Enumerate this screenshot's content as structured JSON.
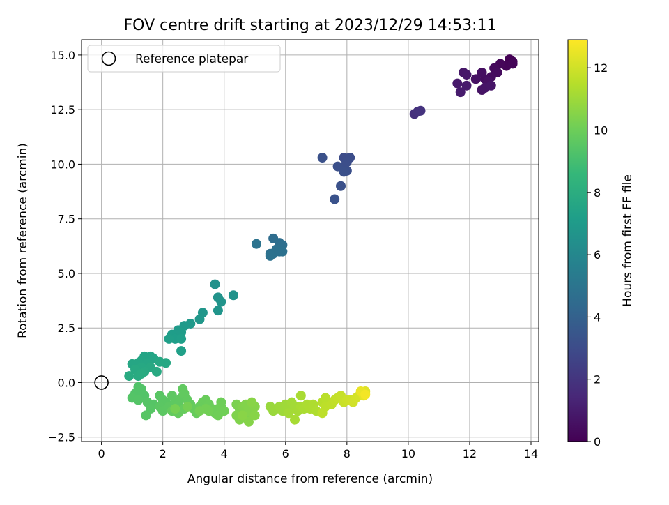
{
  "chart_data": {
    "type": "scatter",
    "title": "FOV centre drift starting at 2023/12/29 14:53:11",
    "xlabel": "Angular distance from reference (arcmin)",
    "ylabel": "Rotation from reference (arcmin)",
    "xlim": [
      -0.65,
      14.25
    ],
    "ylim": [
      -2.7,
      15.7
    ],
    "xticks": [
      0,
      2,
      4,
      6,
      8,
      10,
      12,
      14
    ],
    "yticks": [
      -2.5,
      0.0,
      2.5,
      5.0,
      7.5,
      10.0,
      12.5,
      15.0
    ],
    "ytick_labels": [
      "−2.5",
      "0.0",
      "2.5",
      "5.0",
      "7.5",
      "10.0",
      "12.5",
      "15.0"
    ],
    "grid": true,
    "legend": {
      "placement": "top-left",
      "entries": [
        "Reference platepar"
      ]
    },
    "reference_point": {
      "x": 0,
      "y": 0
    },
    "colorbar": {
      "label": "Hours from first FF file",
      "range": [
        0,
        12.9
      ],
      "ticks": [
        0,
        2,
        4,
        6,
        8,
        10,
        12
      ],
      "colormap": "viridis"
    },
    "colormap_stops": [
      "#440154",
      "#482878",
      "#3e4989",
      "#31688e",
      "#26828e",
      "#1f9e89",
      "#35b779",
      "#6ece58",
      "#b5de2b",
      "#fde725"
    ],
    "series": [
      {
        "columns": [
          "x",
          "y",
          "hours"
        ],
        "points": [
          [
            13.3,
            14.8,
            0.0
          ],
          [
            13.4,
            14.7,
            0.05
          ],
          [
            13.2,
            14.5,
            0.1
          ],
          [
            13.4,
            14.6,
            0.15
          ],
          [
            13.0,
            14.6,
            0.2
          ],
          [
            12.8,
            14.4,
            0.3
          ],
          [
            12.9,
            14.2,
            0.35
          ],
          [
            12.7,
            14.0,
            0.4
          ],
          [
            12.5,
            13.9,
            0.45
          ],
          [
            12.4,
            14.2,
            0.5
          ],
          [
            12.6,
            13.8,
            0.55
          ],
          [
            12.2,
            13.9,
            0.6
          ],
          [
            12.4,
            13.4,
            0.65
          ],
          [
            12.5,
            13.5,
            0.7
          ],
          [
            12.7,
            13.6,
            0.75
          ],
          [
            11.8,
            14.2,
            0.8
          ],
          [
            11.9,
            14.1,
            0.85
          ],
          [
            11.6,
            13.7,
            0.9
          ],
          [
            11.9,
            13.6,
            0.95
          ],
          [
            11.7,
            13.3,
            1.0
          ],
          [
            10.2,
            12.3,
            1.8
          ],
          [
            10.3,
            12.4,
            1.85
          ],
          [
            10.4,
            12.45,
            1.9
          ],
          [
            7.9,
            10.3,
            3.0
          ],
          [
            8.1,
            10.3,
            3.05
          ],
          [
            8.0,
            10.1,
            3.1
          ],
          [
            7.9,
            9.9,
            3.12
          ],
          [
            8.0,
            9.7,
            3.15
          ],
          [
            7.9,
            9.65,
            3.18
          ],
          [
            7.7,
            9.9,
            3.2
          ],
          [
            7.2,
            10.3,
            3.22
          ],
          [
            7.8,
            9.0,
            3.25
          ],
          [
            7.6,
            8.4,
            3.3
          ],
          [
            5.6,
            6.6,
            4.6
          ],
          [
            5.8,
            6.4,
            4.65
          ],
          [
            5.9,
            6.3,
            4.7
          ],
          [
            5.7,
            6.1,
            4.72
          ],
          [
            5.5,
            5.9,
            4.75
          ],
          [
            5.6,
            5.9,
            4.78
          ],
          [
            5.8,
            6.0,
            4.8
          ],
          [
            5.9,
            6.0,
            4.82
          ],
          [
            5.5,
            5.8,
            4.85
          ],
          [
            5.05,
            6.35,
            4.9
          ],
          [
            3.7,
            4.5,
            6.5
          ],
          [
            4.3,
            4.0,
            6.55
          ],
          [
            3.8,
            3.9,
            6.6
          ],
          [
            3.9,
            3.7,
            6.65
          ],
          [
            3.8,
            3.3,
            6.7
          ],
          [
            3.3,
            3.2,
            6.75
          ],
          [
            3.2,
            2.9,
            6.8
          ],
          [
            2.9,
            2.7,
            6.9
          ],
          [
            2.7,
            2.6,
            6.95
          ],
          [
            2.5,
            2.4,
            7.0
          ],
          [
            2.6,
            2.3,
            7.05
          ],
          [
            2.3,
            2.2,
            7.1
          ],
          [
            2.4,
            2.0,
            7.15
          ],
          [
            2.6,
            2.0,
            7.2
          ],
          [
            2.2,
            2.0,
            7.25
          ],
          [
            2.6,
            1.45,
            7.3
          ],
          [
            1.6,
            1.2,
            7.5
          ],
          [
            1.4,
            1.2,
            7.52
          ],
          [
            1.7,
            1.1,
            7.55
          ],
          [
            1.3,
            1.0,
            7.58
          ],
          [
            1.5,
            0.9,
            7.6
          ],
          [
            1.2,
            0.9,
            7.62
          ],
          [
            1.0,
            0.85,
            7.65
          ],
          [
            2.1,
            0.9,
            7.68
          ],
          [
            1.9,
            0.95,
            7.7
          ],
          [
            1.3,
            0.7,
            7.72
          ],
          [
            1.6,
            0.7,
            7.75
          ],
          [
            1.1,
            0.6,
            7.78
          ],
          [
            1.4,
            0.5,
            7.8
          ],
          [
            1.8,
            0.5,
            7.82
          ],
          [
            0.9,
            0.3,
            7.85
          ],
          [
            1.2,
            0.3,
            7.88
          ],
          [
            1.3,
            0.4,
            7.9
          ],
          [
            1.2,
            -0.2,
            9.3
          ],
          [
            1.3,
            -0.3,
            9.32
          ],
          [
            1.1,
            -0.5,
            9.34
          ],
          [
            1.4,
            -0.6,
            9.36
          ],
          [
            1.0,
            -0.7,
            9.38
          ],
          [
            1.2,
            -0.8,
            9.4
          ],
          [
            1.5,
            -0.9,
            9.42
          ],
          [
            1.7,
            -1.0,
            9.44
          ],
          [
            1.6,
            -1.2,
            9.46
          ],
          [
            1.45,
            -1.5,
            9.48
          ],
          [
            1.9,
            -0.6,
            9.5
          ],
          [
            2.0,
            -0.8,
            9.52
          ],
          [
            2.1,
            -0.9,
            9.54
          ],
          [
            1.9,
            -1.1,
            9.56
          ],
          [
            2.0,
            -1.3,
            9.58
          ],
          [
            2.2,
            -1.1,
            9.6
          ],
          [
            2.3,
            -0.6,
            9.62
          ],
          [
            2.4,
            -0.9,
            9.64
          ],
          [
            2.5,
            -1.0,
            9.66
          ],
          [
            2.6,
            -0.7,
            9.68
          ],
          [
            2.65,
            -0.3,
            9.7
          ],
          [
            2.7,
            -0.5,
            9.72
          ],
          [
            2.8,
            -0.8,
            9.74
          ],
          [
            2.9,
            -1.0,
            9.76
          ],
          [
            2.3,
            -1.3,
            9.78
          ],
          [
            2.5,
            -1.4,
            9.8
          ],
          [
            2.7,
            -1.2,
            9.82
          ],
          [
            3.0,
            -1.2,
            9.84
          ],
          [
            3.1,
            -1.4,
            9.86
          ],
          [
            3.2,
            -1.1,
            9.88
          ],
          [
            3.3,
            -0.9,
            9.9
          ],
          [
            3.4,
            -0.8,
            9.92
          ],
          [
            3.5,
            -1.0,
            9.94
          ],
          [
            3.6,
            -1.2,
            9.96
          ],
          [
            3.7,
            -1.4,
            9.98
          ],
          [
            3.8,
            -1.2,
            10.0
          ],
          [
            3.9,
            -0.9,
            10.02
          ],
          [
            3.9,
            -1.1,
            10.04
          ],
          [
            3.8,
            -1.5,
            10.06
          ],
          [
            4.0,
            -1.3,
            10.08
          ],
          [
            3.5,
            -1.3,
            10.1
          ],
          [
            3.4,
            -1.2,
            10.12
          ],
          [
            3.2,
            -1.3,
            10.14
          ],
          [
            2.8,
            -1.1,
            10.16
          ],
          [
            2.4,
            -1.2,
            10.18
          ],
          [
            4.4,
            -1.0,
            10.3
          ],
          [
            4.5,
            -1.2,
            10.32
          ],
          [
            4.6,
            -1.4,
            10.34
          ],
          [
            4.7,
            -1.6,
            10.36
          ],
          [
            4.4,
            -1.5,
            10.38
          ],
          [
            4.5,
            -1.7,
            10.4
          ],
          [
            4.6,
            -1.1,
            10.42
          ],
          [
            4.7,
            -1.0,
            10.44
          ],
          [
            4.8,
            -1.2,
            10.46
          ],
          [
            4.9,
            -1.4,
            10.48
          ],
          [
            4.8,
            -1.8,
            10.5
          ],
          [
            5.0,
            -1.1,
            10.52
          ],
          [
            5.0,
            -1.5,
            10.54
          ],
          [
            4.9,
            -0.9,
            10.56
          ],
          [
            4.6,
            -1.5,
            10.58
          ],
          [
            5.5,
            -1.1,
            10.9
          ],
          [
            5.6,
            -1.3,
            10.92
          ],
          [
            5.7,
            -1.2,
            10.95
          ],
          [
            5.8,
            -1.1,
            10.98
          ],
          [
            5.9,
            -1.3,
            11.0
          ],
          [
            6.0,
            -1.0,
            11.02
          ],
          [
            6.1,
            -1.2,
            11.05
          ],
          [
            6.2,
            -0.9,
            11.08
          ],
          [
            6.3,
            -1.1,
            11.1
          ],
          [
            6.1,
            -1.4,
            11.12
          ],
          [
            6.4,
            -1.3,
            11.15
          ],
          [
            6.3,
            -1.7,
            11.18
          ],
          [
            6.5,
            -1.1,
            11.2
          ],
          [
            6.5,
            -0.6,
            11.22
          ],
          [
            6.6,
            -1.2,
            11.25
          ],
          [
            6.7,
            -1.0,
            11.28
          ],
          [
            6.8,
            -1.2,
            11.3
          ],
          [
            6.9,
            -1.0,
            11.32
          ],
          [
            7.0,
            -1.3,
            11.35
          ],
          [
            7.2,
            -0.9,
            11.5
          ],
          [
            7.3,
            -0.7,
            11.55
          ],
          [
            7.3,
            -1.1,
            11.6
          ],
          [
            7.2,
            -1.4,
            11.62
          ],
          [
            7.5,
            -1.0,
            11.65
          ],
          [
            7.6,
            -0.8,
            11.7
          ],
          [
            7.7,
            -0.7,
            11.75
          ],
          [
            7.8,
            -0.6,
            11.8
          ],
          [
            7.9,
            -0.9,
            11.85
          ],
          [
            8.0,
            -0.8,
            11.9
          ],
          [
            8.1,
            -0.8,
            11.95
          ],
          [
            8.2,
            -0.9,
            12.0
          ],
          [
            8.3,
            -0.7,
            12.05
          ],
          [
            8.4,
            -0.6,
            12.1
          ],
          [
            8.5,
            -0.5,
            12.2
          ],
          [
            8.6,
            -0.4,
            12.3
          ],
          [
            8.55,
            -0.6,
            12.4
          ],
          [
            8.45,
            -0.4,
            12.5
          ],
          [
            8.6,
            -0.55,
            12.7
          ]
        ]
      }
    ]
  }
}
